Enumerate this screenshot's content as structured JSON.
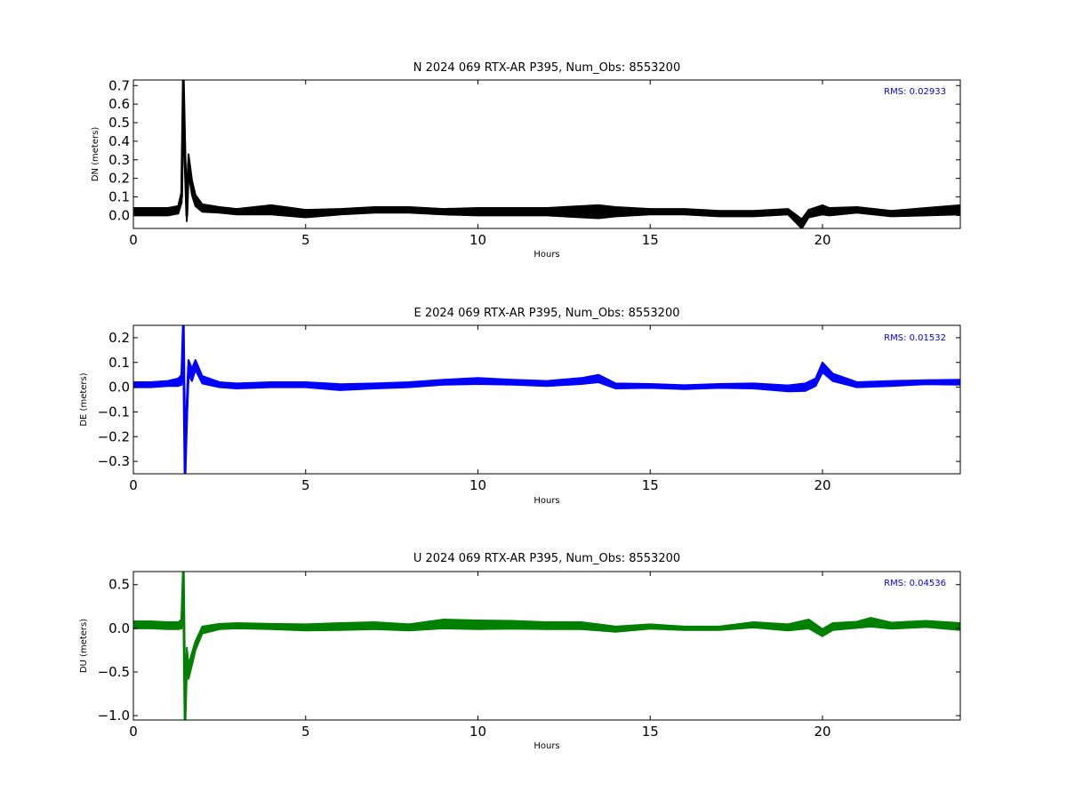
{
  "chart_data": [
    {
      "type": "line",
      "component": "N",
      "title": "N 2024 069 RTX-AR  P395, Num_Obs: 8553200",
      "xlabel": "Hours",
      "ylabel": "DN (meters)",
      "xlim": [
        0,
        24
      ],
      "ylim": [
        -0.07,
        0.73
      ],
      "xticks": [
        0,
        5,
        10,
        15,
        20
      ],
      "yticks": [
        0.0,
        0.1,
        0.2,
        0.3,
        0.4,
        0.5,
        0.6,
        0.7
      ],
      "ytick_labels": [
        "0.0",
        "0.1",
        "0.2",
        "0.3",
        "0.4",
        "0.5",
        "0.6",
        "0.7"
      ],
      "rms_label": "RMS:  0.02933",
      "color": "#000000",
      "rms_color": "#0000ff",
      "grid": false,
      "series": [
        {
          "x": [
            0,
            0.5,
            1.0,
            1.3,
            1.4,
            1.45,
            1.5,
            1.55,
            1.6,
            1.7,
            1.8,
            2.0,
            2.5,
            3.0,
            4.0,
            5.0,
            6.0,
            7.0,
            8.0,
            9.0,
            10.0,
            11.0,
            12.0,
            13.0,
            13.5,
            14.0,
            15.0,
            16.0,
            17.0,
            18.0,
            19.0,
            19.4,
            19.6,
            20.0,
            20.2,
            21.0,
            22.0,
            23.0,
            24.0
          ],
          "y": [
            0.02,
            0.02,
            0.02,
            0.03,
            0.1,
            0.73,
            0.3,
            0.0,
            0.28,
            0.15,
            0.08,
            0.04,
            0.03,
            0.02,
            0.03,
            0.01,
            0.02,
            0.03,
            0.03,
            0.02,
            0.02,
            0.02,
            0.02,
            0.02,
            0.02,
            0.02,
            0.02,
            0.02,
            0.01,
            0.01,
            0.02,
            -0.05,
            0.01,
            0.03,
            0.02,
            0.03,
            0.01,
            0.02,
            0.03
          ],
          "band": [
            0.02,
            0.02,
            0.02,
            0.02,
            0.03,
            0.05,
            0.05,
            0.03,
            0.05,
            0.04,
            0.03,
            0.02,
            0.015,
            0.015,
            0.025,
            0.02,
            0.015,
            0.015,
            0.015,
            0.015,
            0.02,
            0.02,
            0.02,
            0.03,
            0.035,
            0.025,
            0.015,
            0.015,
            0.015,
            0.015,
            0.015,
            0.03,
            0.02,
            0.025,
            0.02,
            0.015,
            0.015,
            0.02,
            0.025
          ]
        }
      ]
    },
    {
      "type": "line",
      "component": "E",
      "title": "E 2024 069 RTX-AR  P395, Num_Obs: 8553200",
      "xlabel": "Hours",
      "ylabel": "DE (meters)",
      "xlim": [
        0,
        24
      ],
      "ylim": [
        -0.35,
        0.25
      ],
      "xticks": [
        0,
        5,
        10,
        15,
        20
      ],
      "yticks": [
        -0.3,
        -0.2,
        -0.1,
        0.0,
        0.1,
        0.2
      ],
      "ytick_labels": [
        "−0.3",
        "−0.2",
        "−0.1",
        "0.0",
        "0.1",
        "0.2"
      ],
      "rms_label": "RMS:  0.01532",
      "color": "#0000ff",
      "rms_color": "#0000ff",
      "grid": false,
      "series": [
        {
          "x": [
            0,
            0.5,
            1.0,
            1.3,
            1.4,
            1.45,
            1.5,
            1.55,
            1.6,
            1.7,
            1.8,
            2.0,
            2.5,
            3.0,
            4.0,
            5.0,
            6.0,
            7.0,
            8.0,
            9.0,
            10.0,
            11.0,
            12.0,
            13.0,
            13.5,
            14.0,
            15.0,
            16.0,
            17.0,
            18.0,
            19.0,
            19.5,
            19.8,
            20.0,
            20.3,
            21.0,
            22.0,
            23.0,
            24.0
          ],
          "y": [
            0.01,
            0.01,
            0.015,
            0.02,
            0.03,
            0.25,
            -0.35,
            -0.1,
            0.08,
            0.05,
            0.09,
            0.03,
            0.01,
            0.005,
            0.01,
            0.01,
            0.0,
            0.005,
            0.01,
            0.02,
            0.025,
            0.02,
            0.015,
            0.025,
            0.035,
            0.005,
            0.005,
            0.0,
            0.005,
            0.005,
            -0.005,
            0.0,
            0.02,
            0.08,
            0.04,
            0.01,
            0.015,
            0.02,
            0.02
          ],
          "band": [
            0.01,
            0.01,
            0.01,
            0.015,
            0.02,
            0.03,
            0.03,
            0.03,
            0.03,
            0.025,
            0.02,
            0.015,
            0.01,
            0.01,
            0.01,
            0.01,
            0.012,
            0.01,
            0.01,
            0.01,
            0.012,
            0.01,
            0.01,
            0.012,
            0.015,
            0.01,
            0.008,
            0.008,
            0.008,
            0.01,
            0.012,
            0.015,
            0.015,
            0.02,
            0.015,
            0.01,
            0.01,
            0.008,
            0.01
          ]
        }
      ]
    },
    {
      "type": "line",
      "component": "U",
      "title": "U 2024 069 RTX-AR  P395, Num_Obs: 8553200",
      "xlabel": "Hours",
      "ylabel": "DU (meters)",
      "xlim": [
        0,
        24
      ],
      "ylim": [
        -1.05,
        0.65
      ],
      "xticks": [
        0,
        5,
        10,
        15,
        20
      ],
      "yticks": [
        -1.0,
        -0.5,
        0.0,
        0.5
      ],
      "ytick_labels": [
        "−1.0",
        "−0.5",
        "0.0",
        "0.5"
      ],
      "rms_label": "RMS:  0.04536",
      "color": "#008000",
      "rms_color": "#0000ff",
      "grid": false,
      "series": [
        {
          "x": [
            0,
            0.5,
            1.0,
            1.3,
            1.4,
            1.45,
            1.5,
            1.55,
            1.6,
            1.7,
            1.8,
            2.0,
            2.5,
            3.0,
            4.0,
            5.0,
            6.0,
            7.0,
            8.0,
            9.0,
            10.0,
            11.0,
            12.0,
            13.0,
            14.0,
            15.0,
            16.0,
            17.0,
            18.0,
            19.0,
            19.6,
            20.0,
            20.3,
            21.0,
            21.4,
            22.0,
            23.0,
            24.0
          ],
          "y": [
            0.04,
            0.04,
            0.03,
            0.03,
            0.05,
            0.65,
            -1.05,
            -0.3,
            -0.5,
            -0.35,
            -0.2,
            -0.02,
            0.02,
            0.03,
            0.02,
            0.01,
            0.02,
            0.03,
            0.01,
            0.05,
            0.04,
            0.04,
            0.03,
            0.03,
            -0.01,
            0.02,
            0.0,
            0.0,
            0.04,
            0.01,
            0.05,
            -0.05,
            0.02,
            0.04,
            0.07,
            0.03,
            0.05,
            0.02
          ],
          "band": [
            0.04,
            0.04,
            0.04,
            0.04,
            0.05,
            0.08,
            0.08,
            0.08,
            0.08,
            0.07,
            0.05,
            0.04,
            0.03,
            0.03,
            0.03,
            0.035,
            0.04,
            0.04,
            0.035,
            0.05,
            0.05,
            0.045,
            0.04,
            0.04,
            0.03,
            0.025,
            0.02,
            0.02,
            0.03,
            0.035,
            0.05,
            0.04,
            0.04,
            0.035,
            0.05,
            0.035,
            0.035,
            0.04
          ]
        }
      ]
    }
  ]
}
